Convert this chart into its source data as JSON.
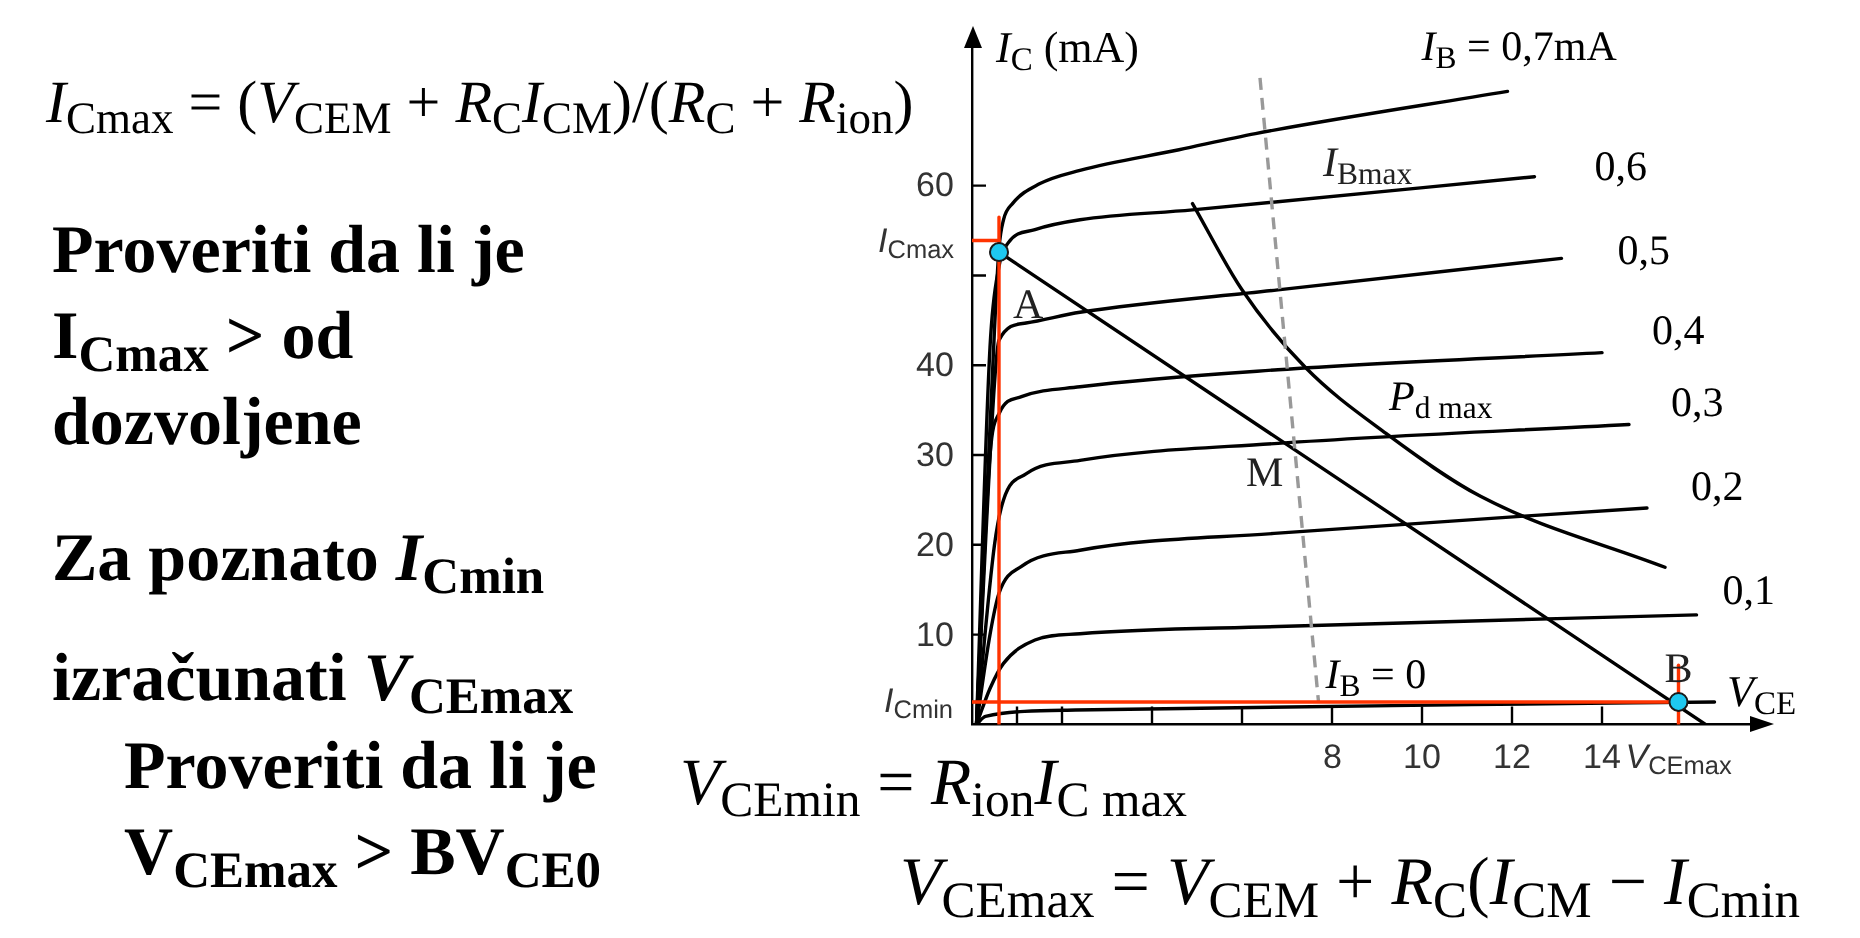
{
  "chart_data": {
    "type": "line",
    "title": "I$_{Cmax}$ = (V$_{CEM}$ + R$_{C}$I$_{CM}$)/(R$_{C}$ + R$_{ion}$)",
    "xlabel": "V$_{CE}$",
    "ylabel": "I$_{C}$ (mA)",
    "xlim": [
      0,
      17.4
    ],
    "ylim": [
      0,
      76
    ],
    "xticks": [
      {
        "value": 1,
        "label": null
      },
      {
        "value": 2,
        "label": null
      },
      {
        "value": 4,
        "label": null
      },
      {
        "value": 6,
        "label": null
      },
      8,
      10,
      12,
      14,
      {
        "value": 15.7,
        "label": "V$_{CEmax}$"
      }
    ],
    "yticks": [
      {
        "value": 2.5,
        "label": "I$_{Cmin}$"
      },
      10,
      20,
      30,
      40,
      {
        "value": 50,
        "label": null
      },
      {
        "value": 53.9,
        "label": "I$_{Cmax}$"
      },
      60
    ],
    "series": [
      {
        "name": "I$_{B}$ = 0,7mA",
        "color": "#000000",
        "x": [
          0.1,
          0.5,
          0.6,
          0.7,
          0.9,
          1.5,
          2.4,
          4.6,
          6.3,
          11.9
        ],
        "values": [
          0,
          44,
          53,
          56.2,
          58,
          60.2,
          61.7,
          64,
          65.8,
          70.5
        ]
      },
      {
        "name": "0,6",
        "color": "#000000",
        "x": [
          0.1,
          0.4,
          0.6,
          0.8,
          1.4,
          2.4,
          4.9,
          12.5
        ],
        "values": [
          0,
          42,
          51,
          53.6,
          55.1,
          56.2,
          57.3,
          61
        ]
      },
      {
        "name": "0,5",
        "color": "#000000",
        "x": [
          0.1,
          0.5,
          0.6,
          1.2,
          2.4,
          6.8,
          13.1
        ],
        "values": [
          0,
          38,
          42.8,
          44.7,
          45.9,
          48.4,
          51.9
        ]
      },
      {
        "name": "0,4",
        "color": "#000000",
        "x": [
          0.1,
          0.4,
          0.6,
          1.1,
          2.4,
          6.8,
          14
        ],
        "values": [
          0,
          30,
          34.6,
          36.5,
          37.6,
          39.5,
          41.4
        ]
      },
      {
        "name": "0,3",
        "color": "#000000",
        "x": [
          0.1,
          0.5,
          0.7,
          1.2,
          2.4,
          6.8,
          14.6
        ],
        "values": [
          0,
          20,
          25,
          27.9,
          29.4,
          31.3,
          33.4
        ]
      },
      {
        "name": "0,2",
        "color": "#000000",
        "x": [
          0.1,
          0.4,
          0.6,
          1.1,
          2.4,
          6.8,
          15
        ],
        "values": [
          0,
          10,
          14.6,
          17.6,
          19.4,
          21.3,
          24.1
        ]
      },
      {
        "name": "0,1",
        "color": "#000000",
        "x": [
          0.1,
          0.4,
          0.7,
          1.4,
          2.4,
          6.8,
          16.1
        ],
        "values": [
          0,
          4,
          6.8,
          9.4,
          10.1,
          10.9,
          12.2
        ]
      },
      {
        "name": "I$_{B}$ = 0",
        "color": "#000000",
        "x": [
          0.1,
          0.3,
          2.3,
          11.1,
          16.5
        ],
        "values": [
          0,
          0.9,
          1.6,
          2.2,
          2.5
        ]
      },
      {
        "color": "#000000",
        "x": [
          0.6,
          16.3
        ],
        "values": [
          52.6,
          0
        ]
      },
      {
        "name": "P$_{d max}$",
        "color": "#000000",
        "x": [
          4.9,
          6,
          7.4,
          9.2,
          11.3,
          15.4
        ],
        "values": [
          58,
          48.4,
          39.8,
          32.4,
          25.4,
          17.5
        ]
      },
      {
        "color": "#999999",
        "line_style": "dashed",
        "x": [
          6.4,
          7.7
        ],
        "values": [
          72,
          2.5
        ]
      },
      {
        "color": "#ff3300",
        "x": [
          0,
          0.6
        ],
        "values": [
          53.9,
          53.9
        ]
      },
      {
        "color": "#ff3300",
        "x": [
          0.6,
          0.6
        ],
        "values": [
          0,
          56.5
        ]
      },
      {
        "color": "#ff3300",
        "x": [
          0,
          15.7
        ],
        "values": [
          2.5,
          2.5
        ]
      },
      {
        "color": "#ff3300",
        "x": [
          15.7,
          15.7
        ],
        "values": [
          0,
          6.6
        ]
      },
      {
        "type": "scatter",
        "color": "#1ec8f0",
        "marker": "circle",
        "x": [
          0.6,
          15.7
        ],
        "values": [
          52.6,
          2.5
        ]
      }
    ],
    "annotations": [
      "Proveriti da li je I$_{Cmax}$ > od dozvoljene",
      "Za poznato I$_{Cmin}$",
      "izračunati V$_{CEmax}$",
      "Proveriti da li je V$_{CEmax}$ > BV$_{CE0}$",
      "V$_{CEmin}$ = R$_{ion}$I$_{C max}$",
      "V$_{CEmax}$ = V$_{CEM}$ + R$_{C}$(I$_{CM}$ − I$_{Cmin}$",
      {
        "text": "I$_{Bmax}$",
        "x": 7.8,
        "y": 58.7
      },
      {
        "text": "A",
        "x": 0.6,
        "y": 52.6
      },
      {
        "text": "M",
        "x": 6.8,
        "y": 31.3
      },
      {
        "text": "B",
        "x": 15.7,
        "y": 2.5
      }
    ]
  }
}
